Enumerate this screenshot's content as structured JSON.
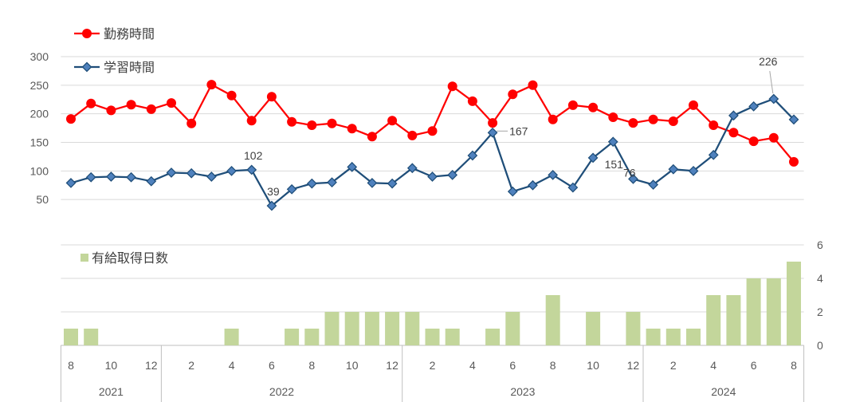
{
  "chart_data": [
    {
      "type": "line",
      "categories": [
        8,
        9,
        10,
        11,
        12,
        1,
        2,
        3,
        4,
        5,
        6,
        7,
        8,
        9,
        10,
        11,
        12,
        1,
        2,
        3,
        4,
        5,
        6,
        7,
        8,
        9,
        10,
        11,
        12,
        1,
        2,
        3,
        4,
        5,
        6,
        7,
        8
      ],
      "ylim": [
        0,
        300
      ],
      "y_ticks": [
        50,
        100,
        150,
        200,
        250,
        300
      ],
      "grid": true,
      "legend_position": "top-left",
      "series": [
        {
          "name": "勤務時間",
          "color": "#ff0000",
          "marker": "circle",
          "values": [
            191,
            218,
            206,
            216,
            208,
            219,
            183,
            251,
            232,
            188,
            230,
            186,
            180,
            183,
            174,
            160,
            188,
            162,
            170,
            248,
            222,
            184,
            234,
            250,
            190,
            215,
            211,
            194,
            184,
            190,
            187,
            215,
            180,
            167,
            152,
            158,
            116
          ]
        },
        {
          "name": "学習時間",
          "color": "#1f4e79",
          "marker": "diamond",
          "marker_fill": "#4f81bd",
          "values": [
            79,
            89,
            90,
            89,
            82,
            97,
            96,
            90,
            100,
            102,
            39,
            68,
            78,
            80,
            107,
            79,
            78,
            105,
            90,
            93,
            127,
            167,
            64,
            75,
            93,
            71,
            123,
            151,
            86,
            76,
            103,
            100,
            128,
            197,
            213,
            226,
            190
          ],
          "data_labels": [
            {
              "index": 9,
              "position": "above"
            },
            {
              "index": 10,
              "position": "above"
            },
            {
              "index": 21,
              "position": "right",
              "leader_line": true
            },
            {
              "index": 27,
              "position": "below"
            },
            {
              "index": 29,
              "position": "left"
            },
            {
              "index": 35,
              "position": "above",
              "leader_line": true
            }
          ]
        }
      ]
    },
    {
      "type": "bar",
      "categories": [
        8,
        9,
        10,
        11,
        12,
        1,
        2,
        3,
        4,
        5,
        6,
        7,
        8,
        9,
        10,
        11,
        12,
        1,
        2,
        3,
        4,
        5,
        6,
        7,
        8,
        9,
        10,
        11,
        12,
        1,
        2,
        3,
        4,
        5,
        6,
        7,
        8
      ],
      "category_groups": [
        "2021",
        "2022",
        "2023",
        "2024"
      ],
      "x_tick_label_interval": 2,
      "ylim": [
        0,
        6
      ],
      "y_ticks": [
        0,
        2,
        4,
        6
      ],
      "y_axis_side": "right",
      "grid": true,
      "legend_position": "top-left",
      "series": [
        {
          "name": "有給取得日数",
          "color": "#c3d69b",
          "values": [
            1,
            1,
            0,
            0,
            0,
            0,
            0,
            0,
            1,
            0,
            0,
            1,
            1,
            2,
            2,
            2,
            2,
            2,
            1,
            1,
            0,
            1,
            2,
            0,
            3,
            0,
            2,
            0,
            2,
            1,
            1,
            1,
            3,
            3,
            4,
            4,
            5
          ]
        }
      ]
    }
  ]
}
